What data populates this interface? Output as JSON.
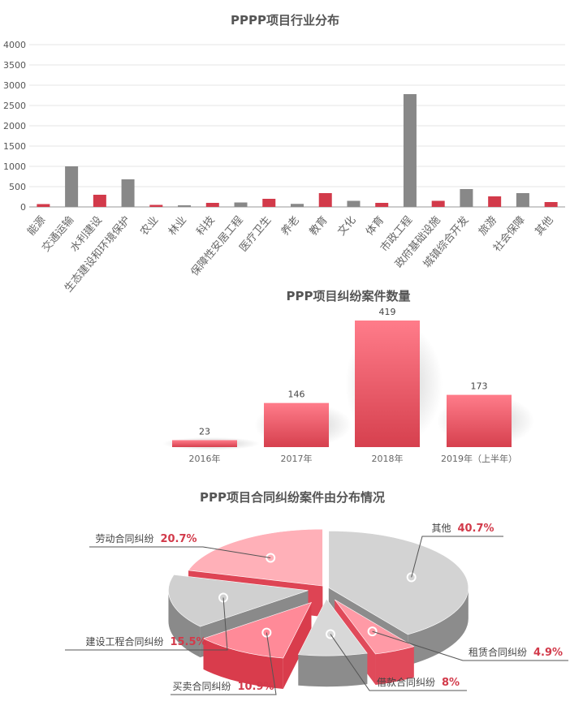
{
  "chart_data": [
    {
      "type": "bar",
      "title": "PPPP项目行业分布",
      "ylim": [
        0,
        4000
      ],
      "yticks": [
        0,
        500,
        1000,
        1500,
        2000,
        2500,
        3000,
        3500,
        4000
      ],
      "grid": true,
      "colors": [
        "#d23a4a",
        "#888888"
      ],
      "categories": [
        "能源",
        "交通运输",
        "水利建设",
        "生态建设和环境保护",
        "农业",
        "林业",
        "科技",
        "保障性安居工程",
        "医疗卫生",
        "养老",
        "教育",
        "文化",
        "体育",
        "市政工程",
        "政府基础设施",
        "城镇综合开发",
        "旅游",
        "社会保障",
        "其他"
      ],
      "values": [
        70,
        1000,
        300,
        680,
        50,
        40,
        100,
        110,
        200,
        75,
        340,
        150,
        100,
        2780,
        150,
        440,
        260,
        340,
        120
      ]
    },
    {
      "type": "bar",
      "title": "PPP项目纠纷案件数量",
      "categories": [
        "2016年",
        "2017年",
        "2018年",
        "2019年（上半年）"
      ],
      "values": [
        23,
        146,
        419,
        173
      ],
      "data_labels": [
        "23",
        "146",
        "419",
        "173"
      ],
      "ylim": [
        0,
        419
      ],
      "colors": [
        "#ff7c8a",
        "#d6404e"
      ]
    },
    {
      "type": "pie",
      "title": "PPP项目合同纠纷案件由分布情况",
      "slices": [
        {
          "label": "其他",
          "pct_text": "40.7%",
          "value": 40.7,
          "color": "#d3d3d3",
          "side": "#8c8c8c"
        },
        {
          "label": "租赁合同纠纷",
          "pct_text": "4.9%",
          "value": 4.9,
          "color": "#ff9aa6",
          "side": "#e04a5a"
        },
        {
          "label": "借款合同纠纷",
          "pct_text": "8%",
          "value": 8,
          "color": "#d8d8d8",
          "side": "#8c8c8c"
        },
        {
          "label": "买卖合同纠纷",
          "pct_text": "10.9%",
          "value": 10.9,
          "color": "#ff8a98",
          "side": "#d93c4c"
        },
        {
          "label": "建设工程合同纠纷",
          "pct_text": "15.5%",
          "value": 15.5,
          "color": "#d0d0d0",
          "side": "#8a8a8a"
        },
        {
          "label": "劳动合同纠纷",
          "pct_text": "20.7%",
          "value": 20.7,
          "color": "#ffb0b8",
          "side": "#de4454"
        }
      ]
    }
  ]
}
